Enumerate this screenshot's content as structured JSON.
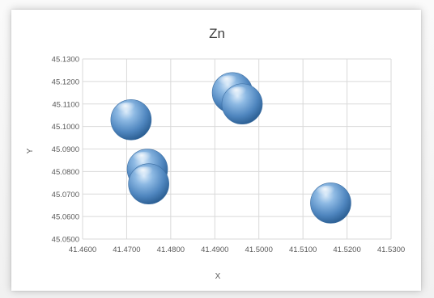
{
  "chart_data": {
    "type": "scatter",
    "title": "Zn",
    "xlabel": "X",
    "ylabel": "Y",
    "xlim": [
      41.46,
      41.53
    ],
    "ylim": [
      45.05,
      45.13
    ],
    "x_ticks": [
      "41.4600",
      "41.4700",
      "41.4800",
      "41.4900",
      "41.5000",
      "41.5100",
      "41.5200",
      "41.5300"
    ],
    "y_ticks": [
      "45.0500",
      "45.0600",
      "45.0700",
      "45.0800",
      "45.0900",
      "45.1000",
      "45.1100",
      "45.1200",
      "45.1300"
    ],
    "grid": true,
    "legend": "none",
    "marker_color": "#5b9bd5",
    "points": [
      {
        "x": 41.471,
        "y": 45.103
      },
      {
        "x": 41.4747,
        "y": 45.081
      },
      {
        "x": 41.475,
        "y": 45.0745
      },
      {
        "x": 41.494,
        "y": 45.115
      },
      {
        "x": 41.4962,
        "y": 45.11
      },
      {
        "x": 41.5163,
        "y": 45.066
      }
    ]
  }
}
